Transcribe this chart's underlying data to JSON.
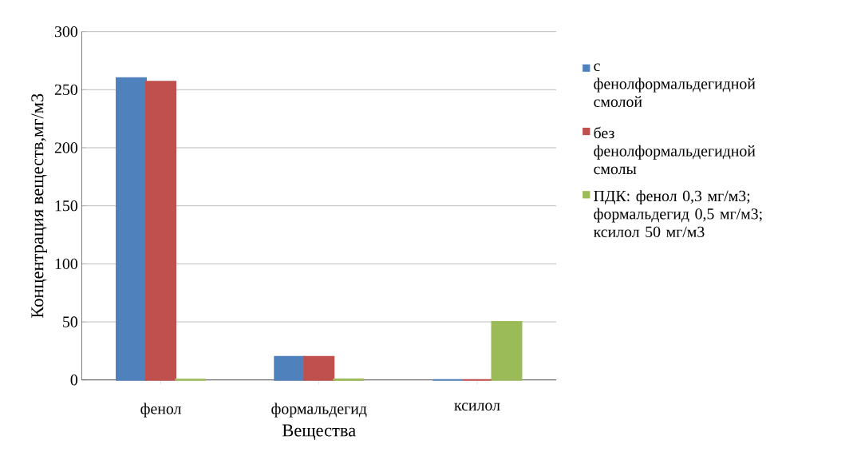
{
  "chart_data": {
    "type": "bar",
    "xlabel": "Вещества",
    "ylabel": "Концентрация веществ,мг/м3",
    "categories": [
      "фенол",
      "формальдегид",
      "ксилол"
    ],
    "series": [
      {
        "name": "с фенолформальдегидной смолой",
        "color": "#4f81bd",
        "values": [
          260,
          20,
          0
        ]
      },
      {
        "name": "без фенолформальдегидной смолы",
        "color": "#c0504d",
        "values": [
          257,
          20,
          0
        ]
      },
      {
        "name": "ПДК: фенол 0,3 мг/м3; формальдегид 0,5 мг/м3; ксилол 50 мг/м3",
        "color": "#9bbb59",
        "values": [
          0.3,
          0.5,
          50
        ]
      }
    ],
    "ylim": [
      0,
      300
    ],
    "yticks": [
      0,
      50,
      100,
      150,
      200,
      250,
      300
    ],
    "grid": "y",
    "legend": "right"
  }
}
